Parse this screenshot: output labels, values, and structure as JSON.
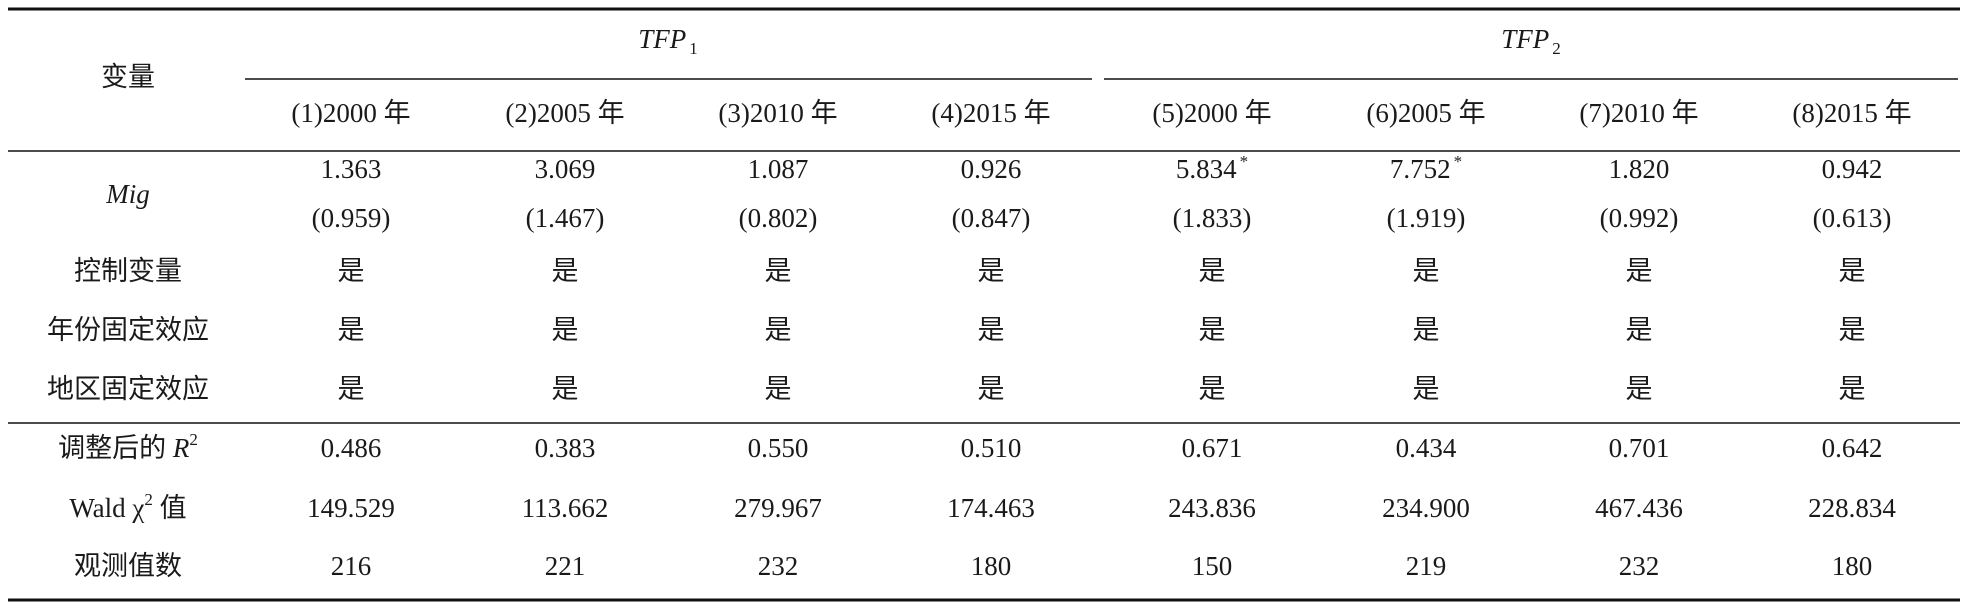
{
  "table": {
    "corner": "变量",
    "groups": [
      {
        "name": "TFP",
        "sub": "1"
      },
      {
        "name": "TFP",
        "sub": "2"
      }
    ],
    "columns": [
      "(1)2000 年",
      "(2)2005 年",
      "(3)2010 年",
      "(4)2015 年",
      "(5)2000 年",
      "(6)2005 年",
      "(7)2010 年",
      "(8)2015 年"
    ],
    "mig": {
      "label": "Mig",
      "coef": [
        {
          "value": "1.363"
        },
        {
          "value": "3.069"
        },
        {
          "value": "1.087"
        },
        {
          "value": "0.926"
        },
        {
          "value": "5.834",
          "star": "*"
        },
        {
          "value": "7.752",
          "star": "*"
        },
        {
          "value": "1.820"
        },
        {
          "value": "0.942"
        }
      ],
      "se": [
        "(0.959)",
        "(1.467)",
        "(0.802)",
        "(0.847)",
        "(1.833)",
        "(1.919)",
        "(0.992)",
        "(0.613)"
      ]
    },
    "rows": [
      {
        "label": [
          {
            "text": "控制变量"
          }
        ],
        "cells": [
          "是",
          "是",
          "是",
          "是",
          "是",
          "是",
          "是",
          "是"
        ]
      },
      {
        "label": [
          {
            "text": "年份固定效应"
          }
        ],
        "cells": [
          "是",
          "是",
          "是",
          "是",
          "是",
          "是",
          "是",
          "是"
        ]
      },
      {
        "label": [
          {
            "text": "地区固定效应"
          }
        ],
        "cells": [
          "是",
          "是",
          "是",
          "是",
          "是",
          "是",
          "是",
          "是"
        ]
      },
      {
        "label": [
          {
            "text": "调整后的 "
          },
          {
            "text": "R",
            "italic": true
          },
          {
            "text": "2",
            "sup": true
          }
        ],
        "cells": [
          "0.486",
          "0.383",
          "0.550",
          "0.510",
          "0.671",
          "0.434",
          "0.701",
          "0.642"
        ]
      },
      {
        "label": [
          {
            "text": "Wald χ"
          },
          {
            "text": "2",
            "sup": true
          },
          {
            "text": " 值"
          }
        ],
        "cells": [
          "149.529",
          "113.662",
          "279.967",
          "174.463",
          "243.836",
          "234.900",
          "467.436",
          "228.834"
        ]
      },
      {
        "label": [
          {
            "text": "观测值数"
          }
        ],
        "cells": [
          "216",
          "221",
          "232",
          "180",
          "150",
          "219",
          "232",
          "180"
        ]
      }
    ]
  }
}
